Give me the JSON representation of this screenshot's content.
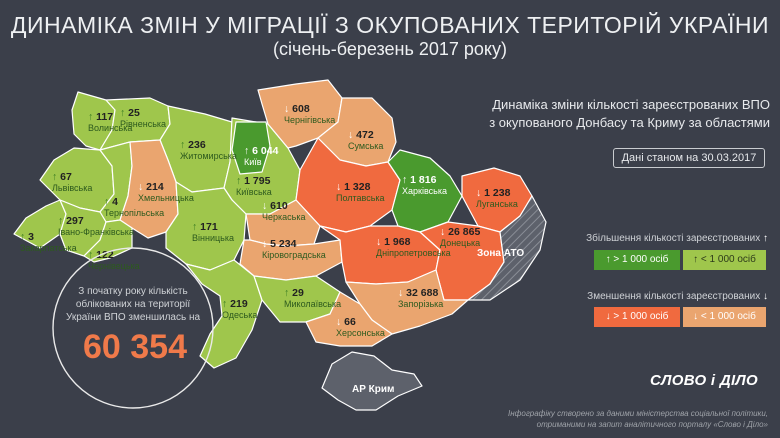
{
  "header": {
    "title": "ДИНАМІКА ЗМІН У МІГРАЦІЇ З ОКУПОВАНИХ ТЕРИТОРІЙ УКРАЇНИ",
    "subtitle": "(січень-березень 2017 року)"
  },
  "info": {
    "line1": "Динаміка зміни кількості зареєстрованих ВПО",
    "line2": "з окупованого Донбасу та Криму за областями",
    "date_label": "Дані станом на 30.03.2017"
  },
  "legend": {
    "increase_title": "Збільшення кількості зареєстрованих",
    "decrease_title": "Зменшення кількості зареєстрованих",
    "more": "> 1 000 осіб",
    "less": "< 1 000 осіб",
    "up_arrow": "↑",
    "down_arrow": "↓",
    "colors": {
      "increase_large": "#4a9a2e",
      "increase_small": "#9fc64c",
      "decrease_large": "#f06a3f",
      "decrease_small": "#eaa56f"
    }
  },
  "summary": {
    "text_line1": "З початку року кількість",
    "text_line2": "облікованих на території",
    "text_line3": "України ВПО зменшилась на",
    "total": "60 354"
  },
  "special_zones": {
    "ato": "Зона АТО",
    "crimea": "АР Крим"
  },
  "regions": [
    {
      "name": "Волинська",
      "value": "117",
      "arrow": "↑"
    },
    {
      "name": "Рівненська",
      "value": "25",
      "arrow": "↑"
    },
    {
      "name": "Житомирська",
      "value": "236",
      "arrow": "↑"
    },
    {
      "name": "Київ",
      "value": "6 044",
      "arrow": "↑"
    },
    {
      "name": "Чернігівська",
      "value": "608",
      "arrow": "↓"
    },
    {
      "name": "Сумська",
      "value": "472",
      "arrow": "↓"
    },
    {
      "name": "Львівська",
      "value": "67",
      "arrow": "↑"
    },
    {
      "name": "Тернопільська",
      "value": "4",
      "arrow": "↑"
    },
    {
      "name": "Хмельницька",
      "value": "214",
      "arrow": "↓"
    },
    {
      "name": "Київська",
      "value": "1 795",
      "arrow": "↑"
    },
    {
      "name": "Полтавська",
      "value": "1 328",
      "arrow": "↓"
    },
    {
      "name": "Харківська",
      "value": "1 816",
      "arrow": "↑"
    },
    {
      "name": "Луганська",
      "value": "1 238",
      "arrow": "↓"
    },
    {
      "name": "Закарпатська",
      "value": "3",
      "arrow": "↑"
    },
    {
      "name": "Івано-Франківська",
      "value": "297",
      "arrow": "↑"
    },
    {
      "name": "Чернівецька",
      "value": "122",
      "arrow": "↑"
    },
    {
      "name": "Вінницька",
      "value": "171",
      "arrow": "↑"
    },
    {
      "name": "Черкаська",
      "value": "610",
      "arrow": "↓"
    },
    {
      "name": "Кіровоградська",
      "value": "5 234",
      "arrow": "↓"
    },
    {
      "name": "Дніпропетровська",
      "value": "1 968",
      "arrow": "↓"
    },
    {
      "name": "Донецька",
      "value": "26 865",
      "arrow": "↓"
    },
    {
      "name": "Запорізька",
      "value": "32 688",
      "arrow": "↓"
    },
    {
      "name": "Одеська",
      "value": "219",
      "arrow": "↑"
    },
    {
      "name": "Миколаївська",
      "value": "29",
      "arrow": "↑"
    },
    {
      "name": "Херсонська",
      "value": "66",
      "arrow": "↓"
    }
  ],
  "logo": "СЛОВО і ДІЛО",
  "footnote": {
    "line1": "Інфографіку створено за даними міністерства соціальної політики,",
    "line2": "отриманими на запит аналітичного порталу «Слово і Діло»"
  }
}
